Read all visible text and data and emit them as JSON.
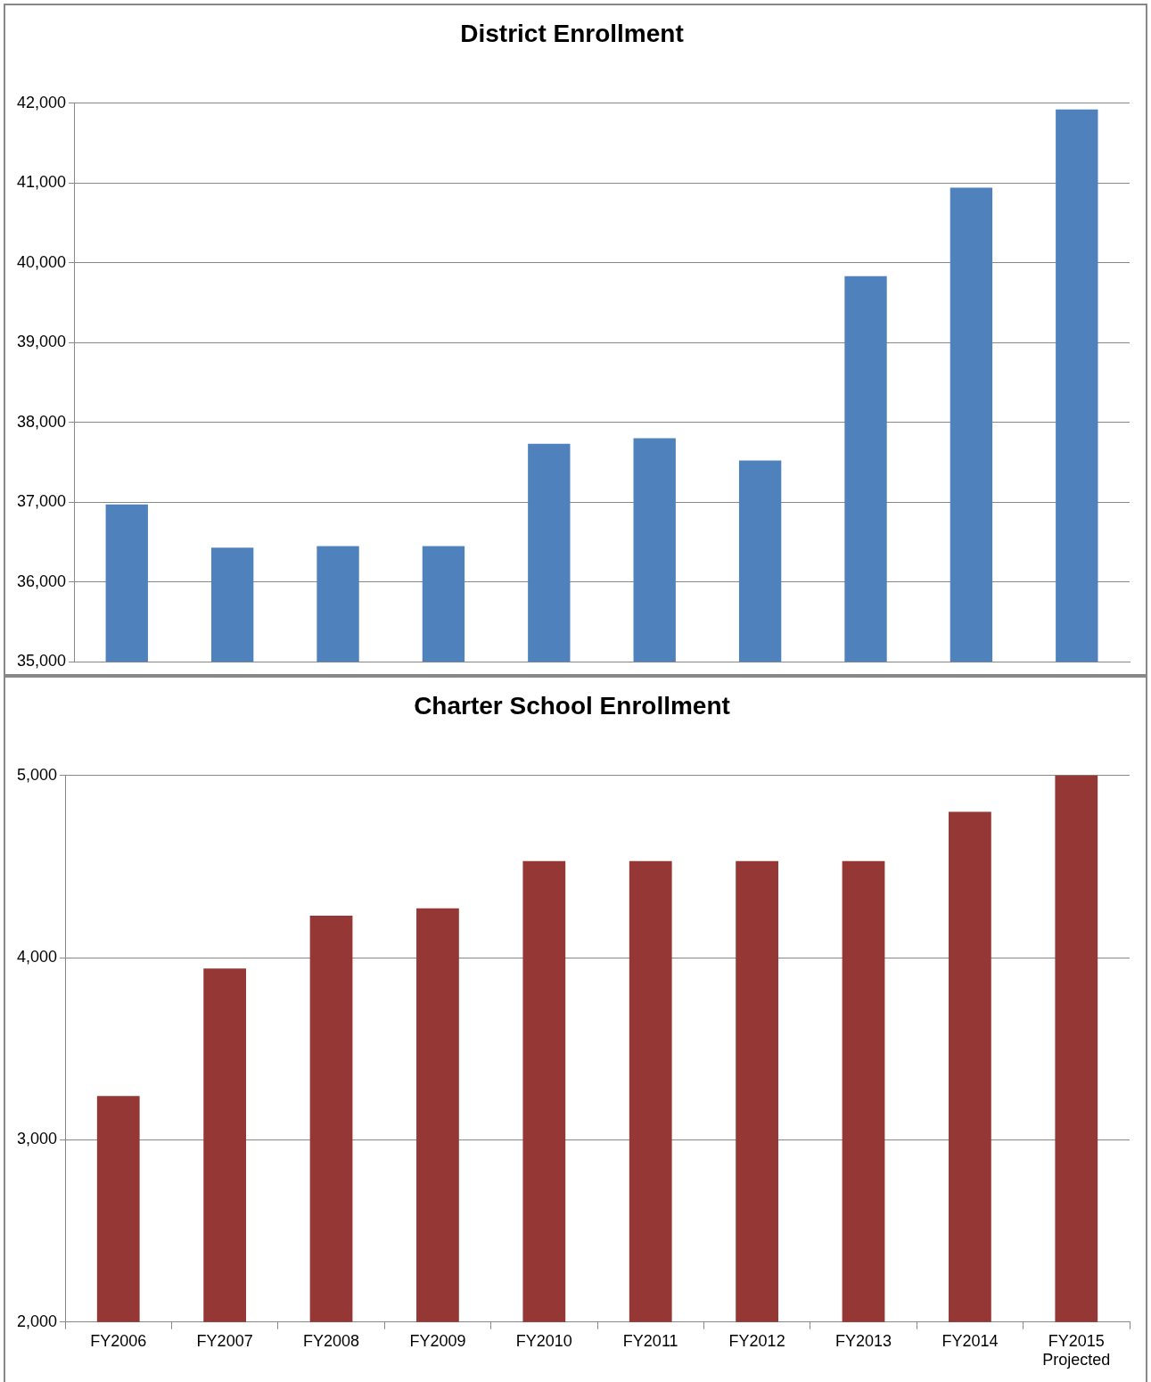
{
  "chart_data": [
    {
      "type": "bar",
      "title": "District Enrollment",
      "categories": [
        null,
        null,
        null,
        null,
        null,
        null,
        null,
        null,
        null,
        null
      ],
      "values": [
        36970,
        36430,
        36450,
        36450,
        37730,
        37800,
        37520,
        39830,
        40940,
        41920
      ],
      "color": "#4f81bd",
      "ylim": [
        35000,
        42000
      ],
      "yticks": [
        {
          "value": 35000,
          "label": "35,000"
        },
        {
          "value": 36000,
          "label": "36,000"
        },
        {
          "value": 37000,
          "label": "37,000"
        },
        {
          "value": 38000,
          "label": "38,000"
        },
        {
          "value": 39000,
          "label": "39,000"
        },
        {
          "value": 40000,
          "label": "40,000"
        },
        {
          "value": 41000,
          "label": "41,000"
        },
        {
          "value": 42000,
          "label": "42,000"
        }
      ],
      "grid": "y",
      "tick_labels": "y"
    },
    {
      "type": "bar",
      "title": "Charter School Enrollment",
      "categories": [
        "FY2006",
        "FY2007",
        "FY2008",
        "FY2009",
        "FY2010",
        "FY2011",
        "FY2012",
        "FY2013",
        "FY2014",
        "FY2015\nProjected"
      ],
      "values": [
        3240,
        3940,
        4230,
        4270,
        4530,
        4530,
        4530,
        4530,
        4800,
        5000
      ],
      "color": "#953735",
      "ylim": [
        2000,
        5000
      ],
      "yticks": [
        {
          "value": 2000,
          "label": "2,000"
        },
        {
          "value": 3000,
          "label": "3,000"
        },
        {
          "value": 4000,
          "label": "4,000"
        },
        {
          "value": 5000,
          "label": "5,000"
        }
      ],
      "grid": "y"
    }
  ]
}
